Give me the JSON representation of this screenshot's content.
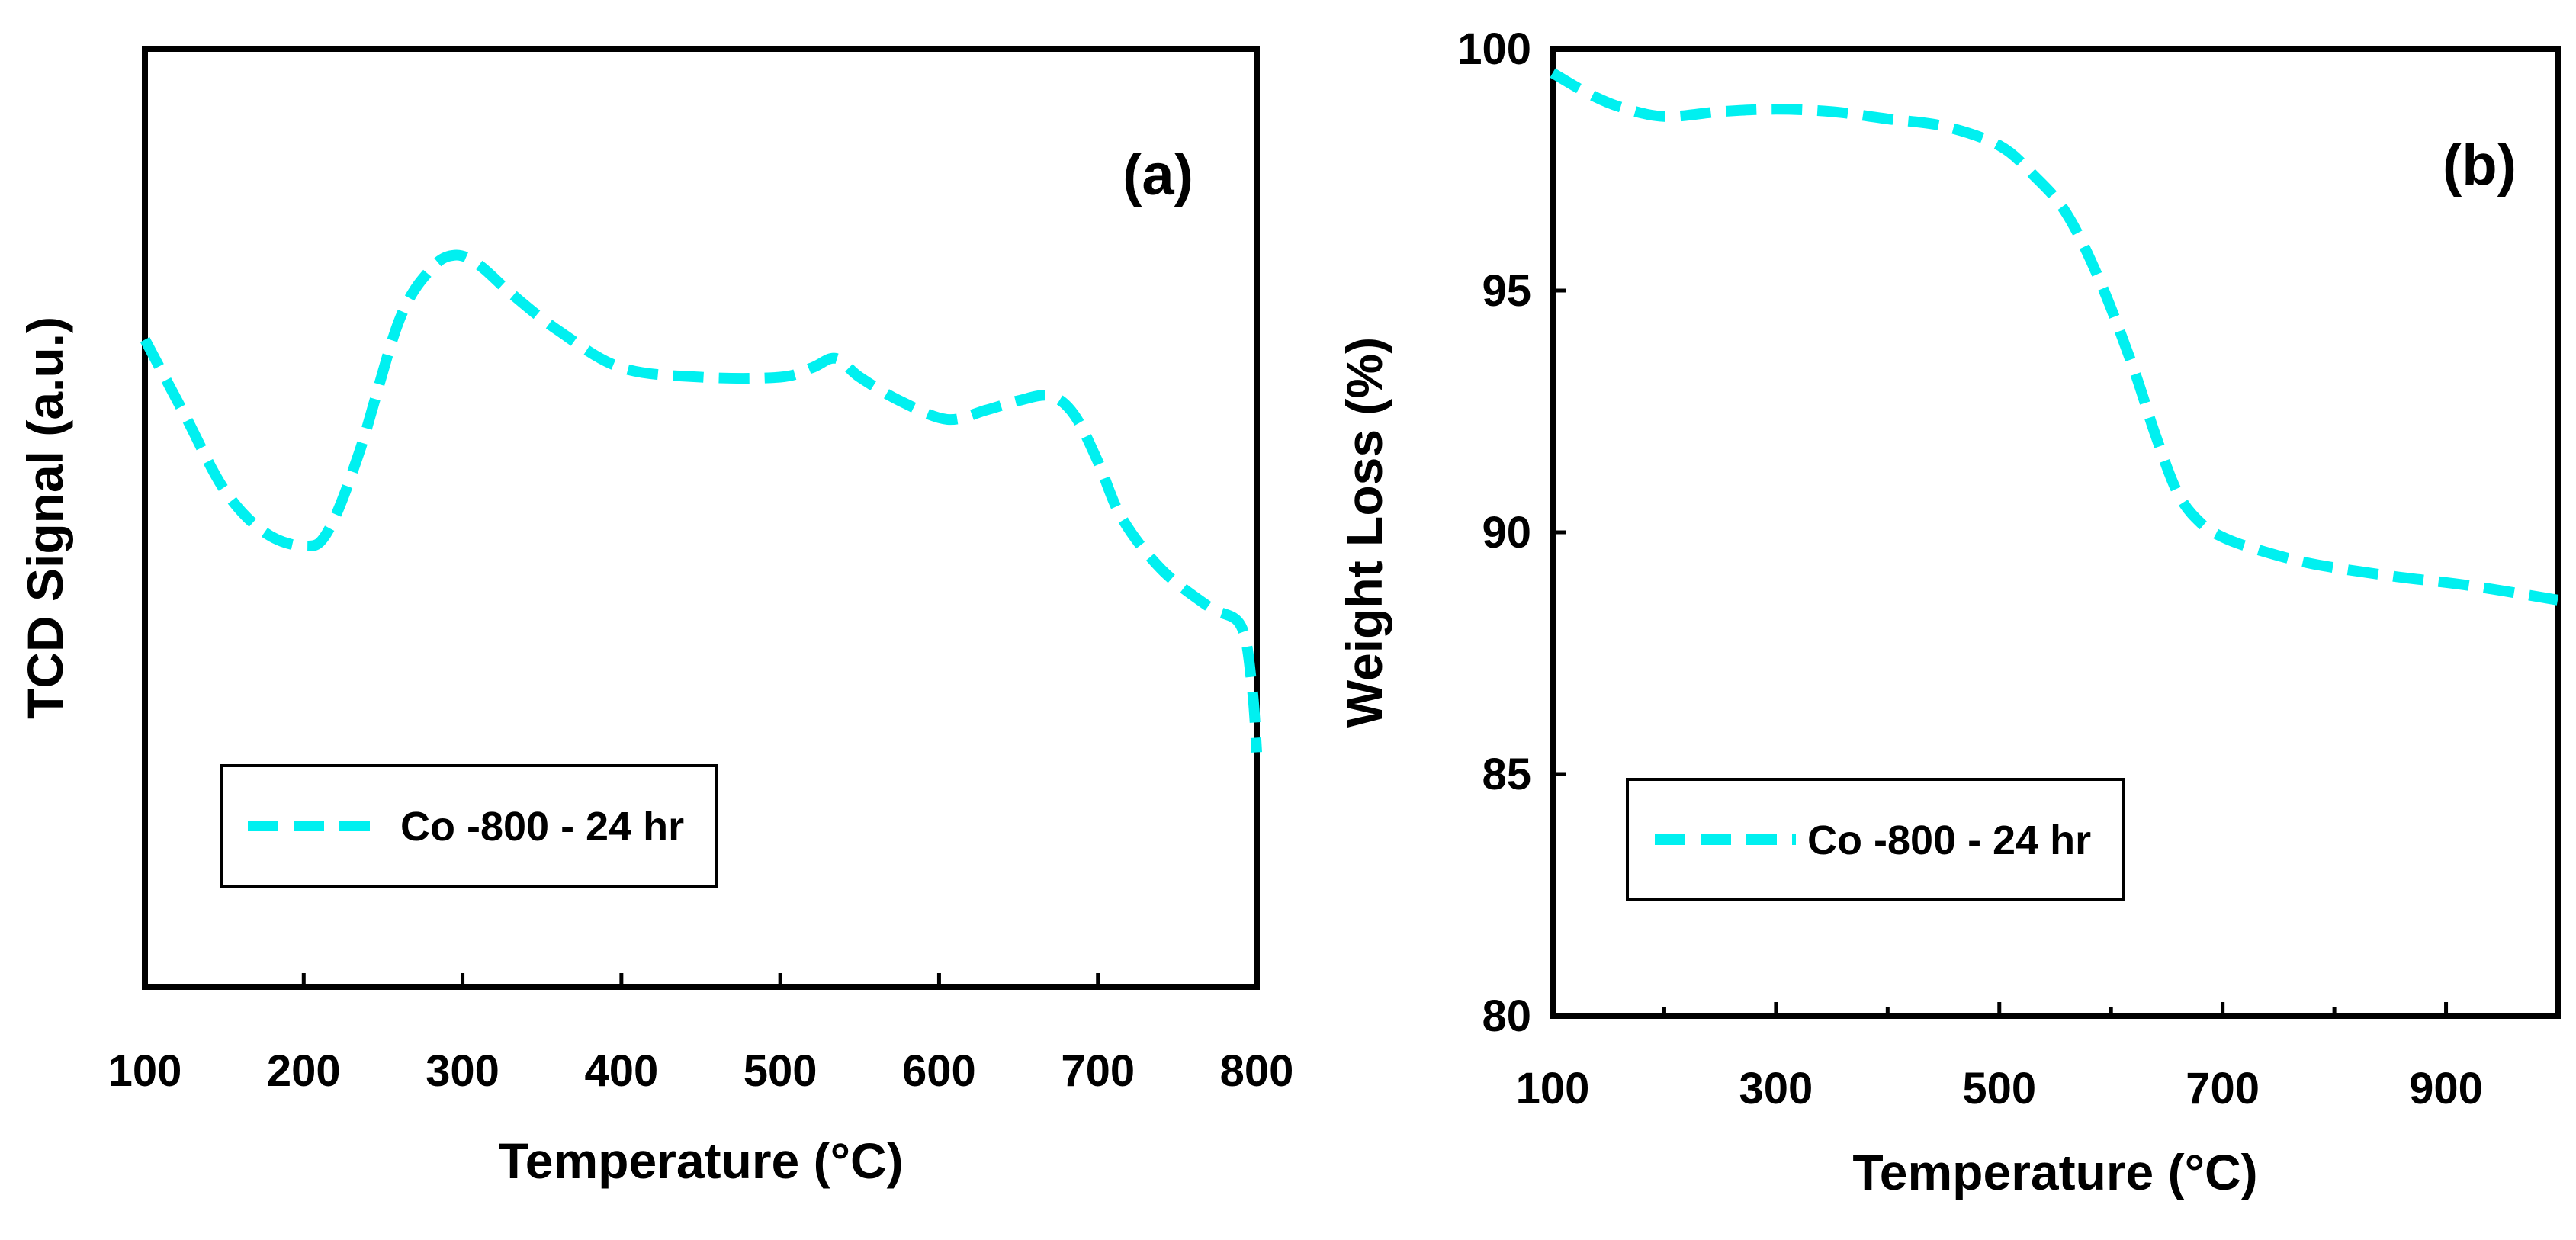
{
  "chart_data": [
    {
      "type": "line",
      "panel_label": "(a)",
      "title": "",
      "xlabel": "Temperature (°C)",
      "ylabel": "TCD Signal (a.u.)",
      "xlim": [
        100,
        800
      ],
      "ylim": [
        0,
        100
      ],
      "x_ticks": [
        100,
        200,
        300,
        400,
        500,
        600,
        700,
        800
      ],
      "x_tick_labels": [
        "100",
        "200",
        "300",
        "400",
        "500",
        "600",
        "700",
        "800"
      ],
      "y_ticks": [],
      "y_tick_labels": [],
      "grid": false,
      "legend_position": "bottom-left",
      "color": "#00f0f0",
      "series": [
        {
          "name": "Co -800 - 24 hr",
          "x": [
            100,
            125,
            150,
            175,
            200,
            215,
            235,
            260,
            280,
            295,
            310,
            330,
            360,
            400,
            450,
            500,
            520,
            535,
            550,
            575,
            605,
            630,
            650,
            670,
            685,
            700,
            715,
            740,
            770,
            790,
            797,
            800
          ],
          "y": [
            69,
            61,
            53,
            48.5,
            47,
            48.5,
            57,
            71,
            76.5,
            78,
            77,
            74,
            70,
            66,
            65,
            65,
            66,
            67,
            65,
            62.5,
            60.5,
            61.5,
            62.5,
            63,
            61,
            56,
            50,
            44.5,
            40.5,
            38.5,
            32,
            25
          ]
        }
      ]
    },
    {
      "type": "line",
      "panel_label": "(b)",
      "title": "",
      "xlabel": "Temperature (°C)",
      "ylabel": "Weight Loss (%)",
      "xlim": [
        100,
        1000
      ],
      "ylim": [
        80,
        100
      ],
      "x_ticks": [
        100,
        300,
        500,
        700,
        900
      ],
      "x_tick_labels": [
        "100",
        "300",
        "500",
        "700",
        "900"
      ],
      "y_ticks": [
        80,
        85,
        90,
        95,
        100
      ],
      "y_tick_labels": [
        "80",
        "85",
        "90",
        "95",
        "100"
      ],
      "grid": false,
      "legend_position": "bottom-left",
      "color": "#00f0f0",
      "series": [
        {
          "name": "Co -800 - 24 hr",
          "x": [
            100,
            130,
            160,
            200,
            250,
            300,
            350,
            400,
            450,
            500,
            530,
            560,
            590,
            620,
            640,
            660,
            680,
            700,
            730,
            780,
            850,
            920,
            1000
          ],
          "y": [
            99.5,
            99.1,
            98.8,
            98.6,
            98.7,
            98.75,
            98.7,
            98.55,
            98.4,
            98.0,
            97.4,
            96.6,
            95.2,
            93.4,
            92.0,
            90.8,
            90.2,
            89.9,
            89.65,
            89.35,
            89.1,
            88.9,
            88.6
          ]
        }
      ]
    }
  ]
}
